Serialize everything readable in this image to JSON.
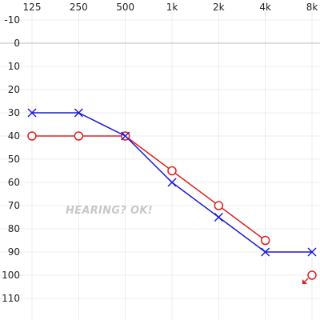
{
  "chart_data": {
    "type": "line",
    "title": "",
    "xlabel": "",
    "ylabel": "",
    "x_scale": "log",
    "x": [
      125,
      250,
      500,
      1000,
      2000,
      4000,
      8000
    ],
    "x_tick_labels": [
      "125",
      "250",
      "500",
      "1k",
      "2k",
      "4k",
      "8k"
    ],
    "y_ticks": [
      -10,
      0,
      10,
      20,
      30,
      40,
      50,
      60,
      70,
      80,
      90,
      100,
      110
    ],
    "y_tick_labels": [
      "-10",
      "0",
      "10",
      "20",
      "30",
      "40",
      "50",
      "60",
      "70",
      "80",
      "90",
      "100",
      "110"
    ],
    "ylim": [
      -10,
      115
    ],
    "y_inverted": true,
    "grid": true,
    "series": [
      {
        "marker": "circle",
        "color": "#e02020",
        "points": [
          {
            "x": 125,
            "y": 40
          },
          {
            "x": 250,
            "y": 40
          },
          {
            "x": 500,
            "y": 40
          },
          {
            "x": 1000,
            "y": 55
          },
          {
            "x": 2000,
            "y": 70
          },
          {
            "x": 4000,
            "y": 85
          },
          {
            "x": 8000,
            "y": 100,
            "no_response": true,
            "connected": false
          }
        ]
      },
      {
        "marker": "x",
        "color": "#1a1adb",
        "points": [
          {
            "x": 125,
            "y": 30
          },
          {
            "x": 250,
            "y": 30
          },
          {
            "x": 500,
            "y": 40
          },
          {
            "x": 1000,
            "y": 60
          },
          {
            "x": 2000,
            "y": 75
          },
          {
            "x": 4000,
            "y": 90
          },
          {
            "x": 8000,
            "y": 90
          }
        ]
      }
    ],
    "watermark": "HEARING? OK!"
  }
}
